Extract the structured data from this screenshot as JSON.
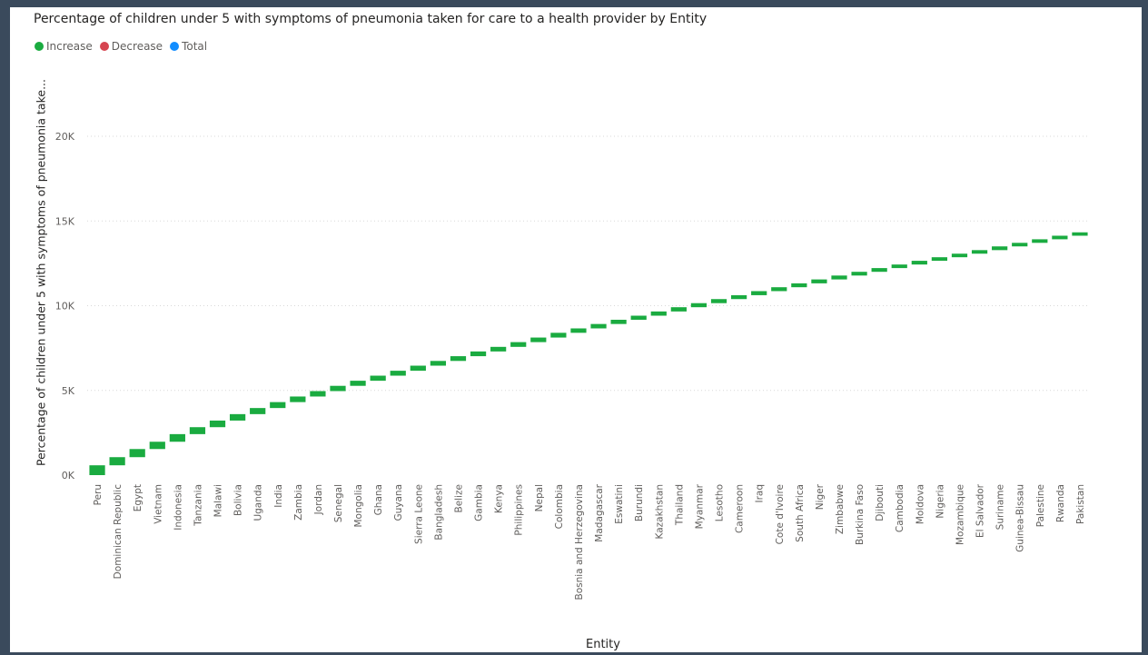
{
  "chart_data": {
    "type": "waterfall",
    "title": "Percentage of children under 5 with symptoms of pneumonia taken for care to a health provider by Entity",
    "xlabel": "Entity",
    "ylabel": "Percentage of children under 5 with symptoms of pneumonia take...",
    "legend": [
      {
        "label": "Increase",
        "color": "#1aab40"
      },
      {
        "label": "Decrease",
        "color": "#d64550"
      },
      {
        "label": "Total",
        "color": "#118dff"
      }
    ],
    "legend_position": "top-left",
    "ylim": [
      0,
      23000
    ],
    "yticks": [
      0,
      5000,
      10000,
      15000,
      20000
    ],
    "ytick_labels": [
      "0K",
      "5K",
      "10K",
      "15K",
      "20K"
    ],
    "grid": true,
    "categories": [
      "Peru",
      "Dominican Republic",
      "Egypt",
      "Vietnam",
      "Indonesia",
      "Tanzania",
      "Malawi",
      "Bolivia",
      "Uganda",
      "India",
      "Zambia",
      "Jordan",
      "Senegal",
      "Mongolia",
      "Ghana",
      "Guyana",
      "Sierra Leone",
      "Bangladesh",
      "Belize",
      "Gambia",
      "Kenya",
      "Philippines",
      "Nepal",
      "Colombia",
      "Bosnia and Herzegovina",
      "Madagascar",
      "Eswatini",
      "Burundi",
      "Kazakhstan",
      "Thailand",
      "Myanmar",
      "Lesotho",
      "Cameroon",
      "Iraq",
      "Cote d'Ivoire",
      "South Africa",
      "Niger",
      "Zimbabwe",
      "Burkina Faso",
      "Djibouti",
      "Cambodia",
      "Moldova",
      "Nigeria",
      "Mozambique",
      "El Salvador",
      "Suriname",
      "Guinea-Bissau",
      "Palestine",
      "Rwanda",
      "Pakistan"
    ],
    "cumulative": [
      580,
      1060,
      1540,
      1970,
      2420,
      2830,
      3220,
      3600,
      3960,
      4310,
      4640,
      4960,
      5270,
      5570,
      5870,
      6160,
      6460,
      6740,
      7020,
      7300,
      7570,
      7850,
      8120,
      8400,
      8660,
      8920,
      9170,
      9410,
      9660,
      9910,
      10150,
      10390,
      10620,
      10860,
      11090,
      11320,
      11550,
      11780,
      12000,
      12220,
      12430,
      12650,
      12860,
      13070,
      13280,
      13500,
      13710,
      13920,
      14130,
      14330
    ]
  }
}
